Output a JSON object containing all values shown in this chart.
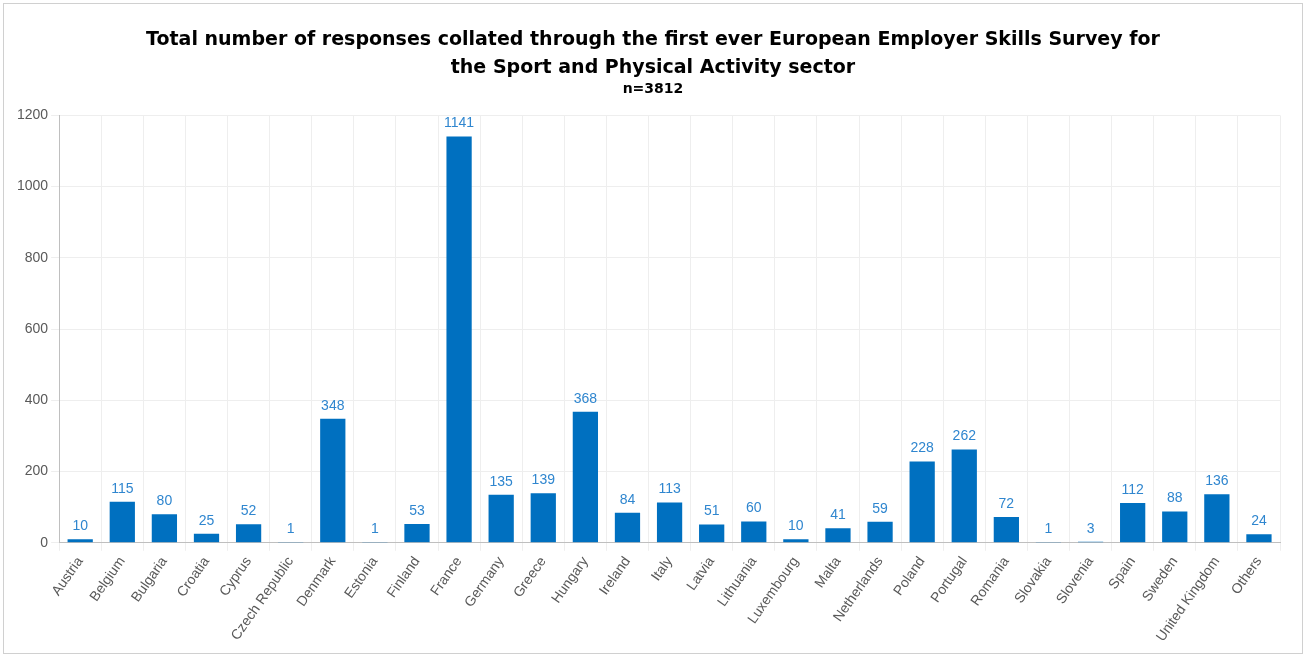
{
  "chart_data": {
    "type": "bar",
    "title": "Total number of responses collated through the first ever European Employer Skills Survey for the Sport and Physical Activity sector",
    "subtitle": "n=3812",
    "categories": [
      "Austria",
      "Belgium",
      "Bulgaria",
      "Croatia",
      "Cyprus",
      "Czech Republic",
      "Denmark",
      "Estonia",
      "Finland",
      "France",
      "Germany",
      "Greece",
      "Hungary",
      "Ireland",
      "Italy",
      "Latvia",
      "Lithuania",
      "Luxembourg",
      "Malta",
      "Netherlands",
      "Poland",
      "Portugal",
      "Romania",
      "Slovakia",
      "Slovenia",
      "Spain",
      "Sweden",
      "United Kingdom",
      "Others"
    ],
    "values": [
      10,
      115,
      80,
      25,
      52,
      1,
      348,
      1,
      53,
      1141,
      135,
      139,
      368,
      84,
      113,
      51,
      60,
      10,
      41,
      59,
      228,
      262,
      72,
      1,
      3,
      112,
      88,
      136,
      24
    ],
    "color": "#0070c0",
    "ylim": [
      0,
      1200
    ],
    "yticks": [
      0,
      200,
      400,
      600,
      800,
      1000,
      1200
    ],
    "grid": true,
    "data_labels": true
  }
}
